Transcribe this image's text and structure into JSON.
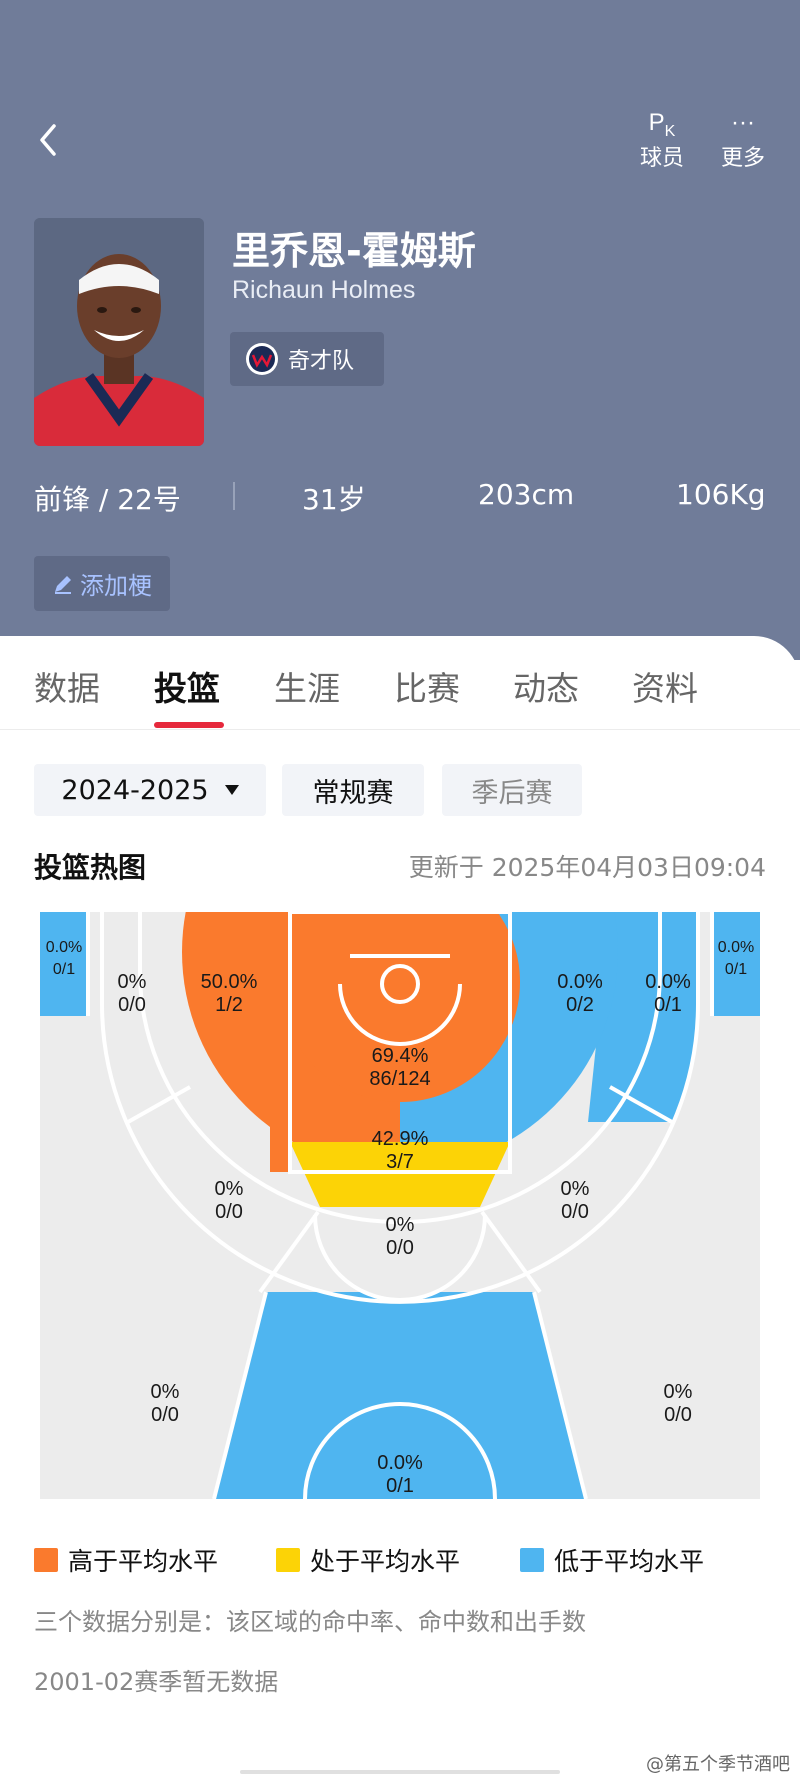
{
  "header": {
    "pk_label": "球员",
    "pk_icon": "P",
    "pk_sub": "K",
    "more_label": "更多",
    "more_icon": "···"
  },
  "player": {
    "name_cn": "里乔恩-霍姆斯",
    "name_en": "Richaun Holmes",
    "team": "奇才队",
    "position": "前锋 / 22号",
    "age": "31岁",
    "height": "203cm",
    "weight": "106Kg",
    "add_meme_label": "添加梗"
  },
  "tabs": [
    {
      "label": "数据",
      "active": false
    },
    {
      "label": "投篮",
      "active": true
    },
    {
      "label": "生涯",
      "active": false
    },
    {
      "label": "比赛",
      "active": false
    },
    {
      "label": "动态",
      "active": false
    },
    {
      "label": "资料",
      "active": false
    }
  ],
  "filters": {
    "season": "2024-2025",
    "regular": "常规赛",
    "playoff": "季后赛"
  },
  "heatmap": {
    "title": "投篮热图",
    "updated": "更新于 2025年04月03日09:04",
    "zones": {
      "corner_left": {
        "pct": "0.0%",
        "made_att": "0/1",
        "level": "below"
      },
      "corner_right": {
        "pct": "0.0%",
        "made_att": "0/1",
        "level": "below"
      },
      "mid_left_outer": {
        "pct": "0%",
        "made_att": "0/0",
        "level": "none"
      },
      "mid_left_inner": {
        "pct": "50.0%",
        "made_att": "1/2",
        "level": "above"
      },
      "restricted": {
        "pct": "69.4%",
        "made_att": "86/124",
        "level": "above"
      },
      "mid_right_inner": {
        "pct": "0.0%",
        "made_att": "0/2",
        "level": "below"
      },
      "mid_right_outer": {
        "pct": "0.0%",
        "made_att": "0/1",
        "level": "below"
      },
      "paint": {
        "pct": "42.9%",
        "made_att": "3/7",
        "level": "average"
      },
      "elbow_left": {
        "pct": "0%",
        "made_att": "0/0",
        "level": "none"
      },
      "elbow_right": {
        "pct": "0%",
        "made_att": "0/0",
        "level": "none"
      },
      "top_key": {
        "pct": "0%",
        "made_att": "0/0",
        "level": "none"
      },
      "three_left": {
        "pct": "0%",
        "made_att": "0/0",
        "level": "none"
      },
      "three_right": {
        "pct": "0%",
        "made_att": "0/0",
        "level": "none"
      },
      "three_top": {
        "pct": "0.0%",
        "made_att": "0/1",
        "level": "below"
      }
    }
  },
  "legend": {
    "above": "高于平均水平",
    "average": "处于平均水平",
    "below": "低于平均水平"
  },
  "colors": {
    "above": "#fa7a2d",
    "average": "#fcd306",
    "below": "#4fb5f0",
    "none": "#ececec",
    "header_bg": "#707c99",
    "tab_accent": "#e6283c"
  },
  "notes": {
    "line1": "三个数据分别是：该区域的命中率、命中数和出手数",
    "line2": "2001-02赛季暂无数据"
  },
  "watermark": "@第五个季节酒吧"
}
